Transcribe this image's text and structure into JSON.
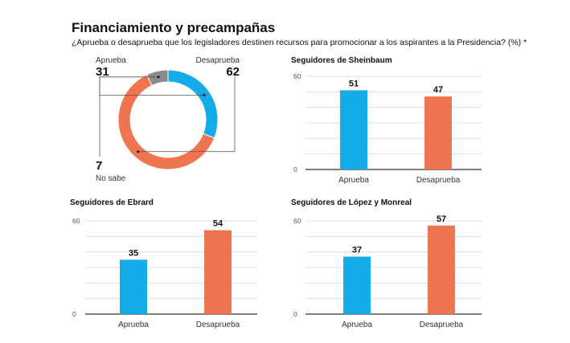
{
  "title": "Financiamiento y precampañas",
  "subtitle": "¿Aprueba o desaprueba que los legisladores destinen recursos para promocionar a los aspirantes a la Presidencia? (%) *",
  "colors": {
    "aprueba": "#14ace8",
    "desaprueba": "#ef7550",
    "no_sabe": "#8a8a8a",
    "grid": "#d9d9d9",
    "axis": "#555555"
  },
  "chart_data": [
    {
      "type": "pie",
      "title": "",
      "slices": [
        {
          "label": "Aprueba",
          "value": 31,
          "color": "#14ace8"
        },
        {
          "label": "Desaprueba",
          "value": 62,
          "color": "#ef7550"
        },
        {
          "label": "No sabe",
          "value": 7,
          "color": "#8a8a8a"
        }
      ]
    },
    {
      "type": "bar",
      "title": "Seguidores de Sheinbaum",
      "categories": [
        "Aprueba",
        "Desaprueba"
      ],
      "values": [
        51,
        47
      ],
      "ylim": [
        0,
        60
      ],
      "yticks": [
        "0",
        "60"
      ],
      "grid": true
    },
    {
      "type": "bar",
      "title": "Seguidores de Ebrard",
      "categories": [
        "Aprueba",
        "Desaprueba"
      ],
      "values": [
        35,
        54
      ],
      "ylim": [
        0,
        60
      ],
      "yticks": [
        "0",
        "60"
      ],
      "grid": true
    },
    {
      "type": "bar",
      "title": "Seguidores de López y Monreal",
      "categories": [
        "Aprueba",
        "Desaprueba"
      ],
      "values": [
        37,
        57
      ],
      "ylim": [
        0,
        60
      ],
      "yticks": [
        "0",
        "60"
      ],
      "grid": true
    }
  ]
}
